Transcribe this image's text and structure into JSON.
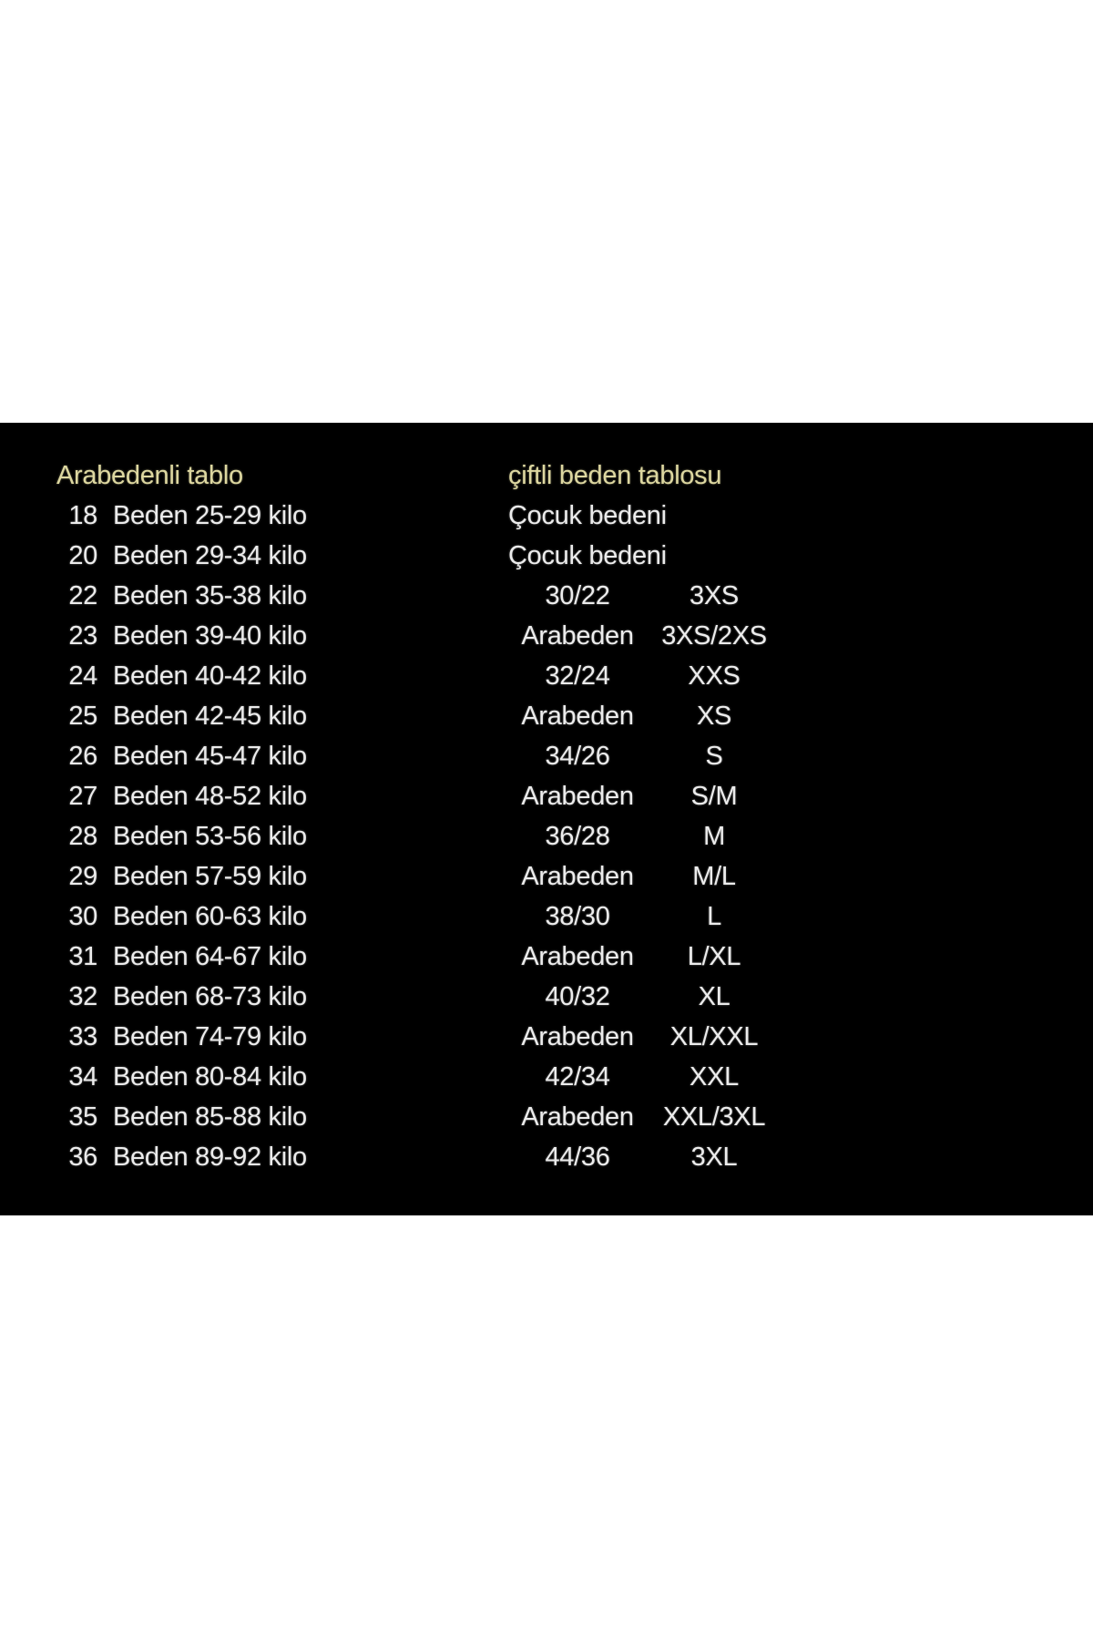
{
  "colors": {
    "page_bg": "#ffffff",
    "panel_bg": "#000000",
    "header_color": "#ddd7a0",
    "text_color": "#ececec"
  },
  "left_table": {
    "header": "Arabedenli tablo",
    "rows": [
      {
        "size": "18",
        "label": "Beden 25-29 kilo"
      },
      {
        "size": "20",
        "label": "Beden 29-34 kilo"
      },
      {
        "size": "22",
        "label": "Beden 35-38 kilo"
      },
      {
        "size": "23",
        "label": "Beden 39-40 kilo"
      },
      {
        "size": "24",
        "label": "Beden 40-42 kilo"
      },
      {
        "size": "25",
        "label": "Beden 42-45 kilo"
      },
      {
        "size": "26",
        "label": "Beden 45-47 kilo"
      },
      {
        "size": "27",
        "label": "Beden 48-52 kilo"
      },
      {
        "size": "28",
        "label": "Beden 53-56 kilo"
      },
      {
        "size": "29",
        "label": "Beden 57-59 kilo"
      },
      {
        "size": "30",
        "label": "Beden 60-63 kilo"
      },
      {
        "size": "31",
        "label": "Beden 64-67 kilo"
      },
      {
        "size": "32",
        "label": "Beden 68-73 kilo"
      },
      {
        "size": "33",
        "label": "Beden 74-79 kilo"
      },
      {
        "size": "34",
        "label": "Beden 80-84 kilo"
      },
      {
        "size": "35",
        "label": "Beden 85-88 kilo"
      },
      {
        "size": "36",
        "label": "Beden 89-92 kilo"
      }
    ]
  },
  "right_table": {
    "header": "çiftli beden tablosu",
    "rows": [
      {
        "a": "Çocuk bedeni",
        "b": ""
      },
      {
        "a": "Çocuk bedeni",
        "b": ""
      },
      {
        "a": "30/22",
        "b": "3XS"
      },
      {
        "a": "Arabeden",
        "b": "3XS/2XS"
      },
      {
        "a": "32/24",
        "b": "XXS"
      },
      {
        "a": "Arabeden",
        "b": "XS"
      },
      {
        "a": "34/26",
        "b": "S"
      },
      {
        "a": "Arabeden",
        "b": "S/M"
      },
      {
        "a": "36/28",
        "b": "M"
      },
      {
        "a": "Arabeden",
        "b": "M/L"
      },
      {
        "a": "38/30",
        "b": "L"
      },
      {
        "a": "Arabeden",
        "b": "L/XL"
      },
      {
        "a": "40/32",
        "b": "XL"
      },
      {
        "a": "Arabeden",
        "b": "XL/XXL"
      },
      {
        "a": "42/34",
        "b": "XXL"
      },
      {
        "a": "Arabeden",
        "b": "XXL/3XL"
      },
      {
        "a": "44/36",
        "b": "3XL"
      }
    ]
  }
}
